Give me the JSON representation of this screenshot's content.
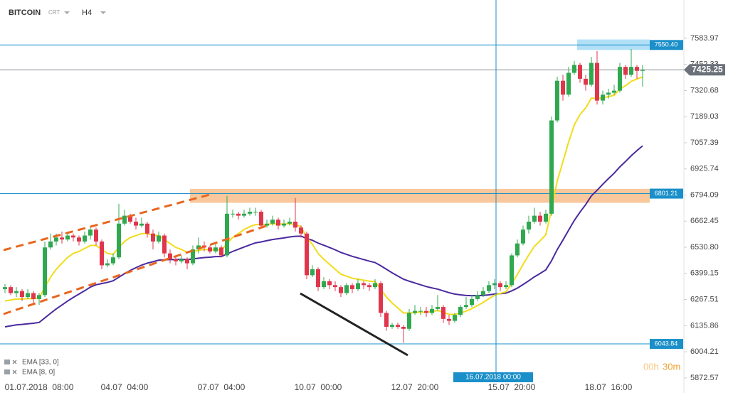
{
  "header": {
    "symbol": "BITCOIN",
    "source": "CRT",
    "interval": "H4"
  },
  "chart_data": {
    "type": "candlestick",
    "categories": [
      null,
      null,
      null,
      null,
      null,
      null,
      "01.07.2018  08:00",
      null,
      null,
      null,
      null,
      null,
      null,
      null,
      null,
      null,
      null,
      null,
      null,
      null,
      null,
      "04.07  04:00",
      null,
      null,
      null,
      null,
      null,
      null,
      null,
      null,
      null,
      null,
      null,
      null,
      null,
      null,
      null,
      null,
      "07.07  04:00",
      null,
      null,
      null,
      null,
      null,
      null,
      null,
      null,
      null,
      null,
      null,
      null,
      null,
      null,
      null,
      null,
      "10.07  00:00",
      null,
      null,
      null,
      null,
      null,
      null,
      null,
      null,
      null,
      null,
      null,
      null,
      null,
      null,
      null,
      null,
      "12.07  20:00",
      null,
      null,
      null,
      null,
      null,
      null,
      null,
      null,
      null,
      null,
      null,
      null,
      null,
      null,
      null,
      null,
      "15.07  20:00",
      null,
      null,
      null,
      null,
      null,
      null,
      null,
      null,
      null,
      null,
      null,
      null,
      null,
      null,
      null,
      null,
      "18.07  16:00",
      null,
      null,
      null,
      null,
      null,
      null
    ],
    "candles": [
      [
        6320,
        6345,
        6300,
        6330
      ],
      [
        6330,
        6340,
        6290,
        6300
      ],
      [
        6300,
        6330,
        6280,
        6310
      ],
      [
        6310,
        6320,
        6260,
        6280
      ],
      [
        6280,
        6320,
        6270,
        6300
      ],
      [
        6300,
        6310,
        6250,
        6270
      ],
      [
        6270,
        6300,
        6240,
        6290
      ],
      [
        6290,
        6560,
        6280,
        6530
      ],
      [
        6530,
        6600,
        6520,
        6560
      ],
      [
        6560,
        6600,
        6540,
        6580
      ],
      [
        6580,
        6610,
        6550,
        6570
      ],
      [
        6570,
        6610,
        6560,
        6590
      ],
      [
        6590,
        6600,
        6560,
        6580
      ],
      [
        6580,
        6590,
        6540,
        6560
      ],
      [
        6560,
        6610,
        6550,
        6590
      ],
      [
        6590,
        6640,
        6570,
        6620
      ],
      [
        6620,
        6630,
        6540,
        6560
      ],
      [
        6560,
        6570,
        6420,
        6440
      ],
      [
        6440,
        6470,
        6430,
        6450
      ],
      [
        6450,
        6500,
        6440,
        6480
      ],
      [
        6480,
        6750,
        6470,
        6650
      ],
      [
        6650,
        6720,
        6640,
        6690
      ],
      [
        6690,
        6700,
        6650,
        6660
      ],
      [
        6660,
        6680,
        6620,
        6640
      ],
      [
        6640,
        6680,
        6630,
        6650
      ],
      [
        6650,
        6660,
        6580,
        6600
      ],
      [
        6600,
        6620,
        6520,
        6560
      ],
      [
        6560,
        6610,
        6550,
        6590
      ],
      [
        6590,
        6600,
        6480,
        6500
      ],
      [
        6500,
        6520,
        6450,
        6470
      ],
      [
        6470,
        6490,
        6440,
        6460
      ],
      [
        6460,
        6490,
        6450,
        6470
      ],
      [
        6470,
        6480,
        6420,
        6450
      ],
      [
        6450,
        6540,
        6440,
        6520
      ],
      [
        6520,
        6580,
        6500,
        6540
      ],
      [
        6540,
        6560,
        6510,
        6530
      ],
      [
        6530,
        6540,
        6500,
        6510
      ],
      [
        6510,
        6550,
        6500,
        6530
      ],
      [
        6530,
        6540,
        6480,
        6490
      ],
      [
        6490,
        6790,
        6480,
        6700
      ],
      [
        6700,
        6720,
        6680,
        6700
      ],
      [
        6700,
        6710,
        6670,
        6690
      ],
      [
        6690,
        6720,
        6680,
        6700
      ],
      [
        6700,
        6730,
        6690,
        6710
      ],
      [
        6710,
        6730,
        6690,
        6710
      ],
      [
        6710,
        6720,
        6630,
        6640
      ],
      [
        6640,
        6670,
        6630,
        6650
      ],
      [
        6650,
        6690,
        6640,
        6670
      ],
      [
        6670,
        6680,
        6620,
        6640
      ],
      [
        6640,
        6670,
        6630,
        6650
      ],
      [
        6650,
        6680,
        6640,
        6660
      ],
      [
        6660,
        6780,
        6610,
        6630
      ],
      [
        6630,
        6640,
        6580,
        6600
      ],
      [
        6600,
        6610,
        6370,
        6390
      ],
      [
        6390,
        6440,
        6380,
        6420
      ],
      [
        6420,
        6430,
        6310,
        6330
      ],
      [
        6330,
        6380,
        6320,
        6360
      ],
      [
        6360,
        6370,
        6320,
        6340
      ],
      [
        6340,
        6360,
        6310,
        6330
      ],
      [
        6330,
        6340,
        6280,
        6300
      ],
      [
        6300,
        6350,
        6290,
        6340
      ],
      [
        6340,
        6350,
        6300,
        6320
      ],
      [
        6320,
        6370,
        6310,
        6350
      ],
      [
        6350,
        6360,
        6320,
        6340
      ],
      [
        6340,
        6350,
        6310,
        6330
      ],
      [
        6330,
        6370,
        6320,
        6350
      ],
      [
        6350,
        6360,
        6180,
        6200
      ],
      [
        6200,
        6210,
        6110,
        6130
      ],
      [
        6130,
        6150,
        6120,
        6140
      ],
      [
        6140,
        6150,
        6120,
        6130
      ],
      [
        6130,
        6140,
        6050,
        6120
      ],
      [
        6120,
        6220,
        6110,
        6200
      ],
      [
        6200,
        6240,
        6190,
        6210
      ],
      [
        6210,
        6230,
        6190,
        6210
      ],
      [
        6210,
        6230,
        6180,
        6200
      ],
      [
        6200,
        6240,
        6190,
        6220
      ],
      [
        6220,
        6290,
        6210,
        6230
      ],
      [
        6230,
        6240,
        6150,
        6170
      ],
      [
        6170,
        6190,
        6140,
        6160
      ],
      [
        6160,
        6200,
        6150,
        6190
      ],
      [
        6190,
        6240,
        6180,
        6230
      ],
      [
        6230,
        6280,
        6220,
        6240
      ],
      [
        6240,
        6290,
        6230,
        6270
      ],
      [
        6270,
        6310,
        6260,
        6290
      ],
      [
        6290,
        6330,
        6280,
        6310
      ],
      [
        6310,
        6360,
        6300,
        6340
      ],
      [
        6340,
        6370,
        6320,
        6350
      ],
      [
        6350,
        6360,
        6310,
        6330
      ],
      [
        6330,
        6360,
        6320,
        6340
      ],
      [
        6340,
        6500,
        6330,
        6490
      ],
      [
        6490,
        6570,
        6480,
        6550
      ],
      [
        6550,
        6640,
        6540,
        6620
      ],
      [
        6620,
        6690,
        6600,
        6660
      ],
      [
        6660,
        6730,
        6650,
        6690
      ],
      [
        6690,
        6710,
        6640,
        6660
      ],
      [
        6660,
        6720,
        6650,
        6700
      ],
      [
        6700,
        7190,
        6690,
        7170
      ],
      [
        7170,
        7390,
        7160,
        7370
      ],
      [
        7370,
        7400,
        7270,
        7300
      ],
      [
        7300,
        7440,
        7290,
        7410
      ],
      [
        7410,
        7470,
        7400,
        7450
      ],
      [
        7450,
        7460,
        7360,
        7380
      ],
      [
        7380,
        7400,
        7320,
        7350
      ],
      [
        7350,
        7490,
        7340,
        7460
      ],
      [
        7460,
        7520,
        7250,
        7270
      ],
      [
        7270,
        7320,
        7250,
        7300
      ],
      [
        7300,
        7330,
        7280,
        7310
      ],
      [
        7310,
        7350,
        7300,
        7320
      ],
      [
        7320,
        7460,
        7310,
        7440
      ],
      [
        7440,
        7450,
        7380,
        7400
      ],
      [
        7400,
        7530,
        7390,
        7440
      ],
      [
        7440,
        7450,
        7380,
        7420
      ],
      [
        7420,
        7450,
        7340,
        7425.25
      ]
    ],
    "up_color": "#2fa84f",
    "down_color": "#e0364d",
    "series": [
      {
        "name": "EMA [33, 0]",
        "color": "#4a2a9e",
        "values": [
          6130,
          6135,
          6140,
          6142,
          6145,
          6148,
          6152,
          6175,
          6198,
          6220,
          6240,
          6260,
          6278,
          6295,
          6312,
          6330,
          6342,
          6348,
          6354,
          6362,
          6380,
          6398,
          6414,
          6428,
          6441,
          6451,
          6458,
          6466,
          6468,
          6469,
          6469,
          6470,
          6469,
          6472,
          6476,
          6479,
          6481,
          6484,
          6484,
          6497,
          6510,
          6521,
          6532,
          6543,
          6553,
          6558,
          6564,
          6570,
          6574,
          6578,
          6583,
          6586,
          6587,
          6575,
          6566,
          6552,
          6541,
          6530,
          6518,
          6505,
          6495,
          6485,
          6477,
          6469,
          6461,
          6454,
          6438,
          6420,
          6402,
          6386,
          6370,
          6360,
          6351,
          6342,
          6333,
          6326,
          6320,
          6311,
          6302,
          6295,
          6291,
          6288,
          6287,
          6287,
          6288,
          6291,
          6295,
          6297,
          6300,
          6311,
          6325,
          6343,
          6362,
          6382,
          6399,
          6417,
          6463,
          6519,
          6567,
          6617,
          6666,
          6708,
          6746,
          6790,
          6818,
          6848,
          6877,
          6904,
          6936,
          6963,
          6992,
          7018,
          7042
        ]
      },
      {
        "name": "EMA [8, 0]",
        "color": "#f2dc1a",
        "values": [
          6260,
          6265,
          6270,
          6270,
          6272,
          6272,
          6275,
          6330,
          6380,
          6420,
          6450,
          6480,
          6500,
          6510,
          6525,
          6540,
          6540,
          6520,
          6500,
          6495,
          6530,
          6560,
          6580,
          6590,
          6600,
          6600,
          6590,
          6590,
          6570,
          6550,
          6530,
          6520,
          6505,
          6510,
          6515,
          6520,
          6518,
          6520,
          6515,
          6550,
          6580,
          6600,
          6620,
          6635,
          6645,
          6645,
          6645,
          6650,
          6648,
          6648,
          6650,
          6645,
          6635,
          6580,
          6545,
          6500,
          6470,
          6445,
          6420,
          6395,
          6385,
          6375,
          6370,
          6365,
          6360,
          6358,
          6320,
          6280,
          6250,
          6225,
          6200,
          6200,
          6202,
          6204,
          6203,
          6207,
          6212,
          6203,
          6193,
          6192,
          6200,
          6209,
          6222,
          6237,
          6253,
          6272,
          6289,
          6298,
          6307,
          6348,
          6394,
          6444,
          6492,
          6536,
          6564,
          6594,
          6721,
          6865,
          6962,
          7061,
          7148,
          7200,
          7233,
          7283,
          7280,
          7284,
          7290,
          7297,
          7329,
          7345,
          7367,
          7379,
          7389
        ]
      }
    ],
    "ylim": [
      5797,
      7777
    ],
    "yticks": [
      7583.97,
      7452.33,
      7320.68,
      7189.03,
      7057.39,
      6925.74,
      6794.09,
      6662.45,
      {
        "value": 6530.8,
        "label": "6530.80"
      },
      6399.15,
      6267.51,
      6135.86,
      6004.21,
      5872.57
    ],
    "levels": [
      {
        "value": 7550.4,
        "label": "7550.40",
        "color": "#1a8fc9"
      },
      {
        "value": 6801.21,
        "color": "#1a8fc9"
      },
      {
        "value": 6043.84,
        "color": "#1a8fc9"
      }
    ],
    "last_price": 7425.25,
    "zones": [
      {
        "from": 6755,
        "to": 6825,
        "start": 33,
        "color": "#f7b983"
      },
      {
        "from": 7525,
        "to": 7578,
        "start": 101,
        "color": "#9fd8f5"
      }
    ],
    "crosshair_label": "16.07.2018 00:00",
    "countdown": {
      "hours": "00h",
      "minutes": "30m"
    }
  }
}
